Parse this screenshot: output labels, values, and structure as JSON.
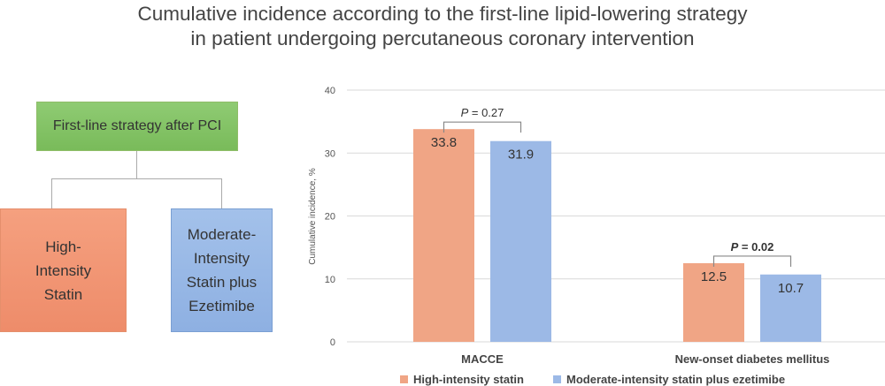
{
  "title": {
    "line1": "Cumulative incidence according to the first-line lipid-lowering strategy",
    "line2": "in patient undergoing percutaneous coronary intervention"
  },
  "flow": {
    "root": "First-line strategy after PCI",
    "left": [
      "High-",
      "Intensity",
      "Statin"
    ],
    "right": [
      "Moderate-",
      "Intensity",
      "Statin plus",
      "Ezetimibe"
    ]
  },
  "chart_data": {
    "type": "bar",
    "categories": [
      "MACCE",
      "New-onset diabetes mellitus"
    ],
    "series": [
      {
        "name": "High-intensity statin",
        "values": [
          33.8,
          12.5
        ],
        "color": "#f0a585"
      },
      {
        "name": "Moderate-intensity statin plus ezetimibe",
        "values": [
          31.9,
          10.7
        ],
        "color": "#9cb9e6"
      }
    ],
    "ylabel": "Cumulative incidence, %",
    "ylim": [
      0,
      40
    ],
    "yticks": [
      0,
      10,
      20,
      30,
      40
    ],
    "grid": true,
    "legend": "bottom",
    "annotations": [
      {
        "category": "MACCE",
        "label": "P = 0.27",
        "p_label": "P",
        "p_value": "= 0.27",
        "bold": false
      },
      {
        "category": "New-onset diabetes mellitus",
        "label": "P = 0.02",
        "p_label": "P",
        "p_value": "= 0.02",
        "bold": true
      }
    ]
  }
}
